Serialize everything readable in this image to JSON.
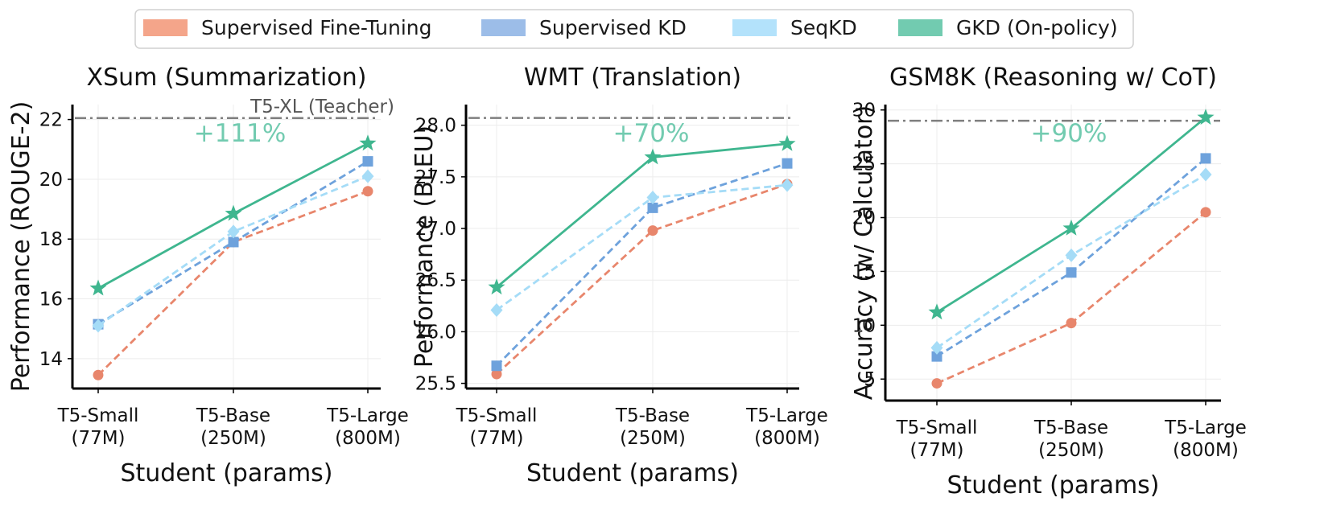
{
  "legend": {
    "position": "top-center",
    "entries": [
      {
        "label": "Supervised Fine-Tuning",
        "color": "#f4a58a"
      },
      {
        "label": "Supervised KD",
        "color": "#9cbde8"
      },
      {
        "label": "SeqKD",
        "color": "#b3e2fb"
      },
      {
        "label": "GKD (On-policy)",
        "color": "#72cbb0"
      }
    ]
  },
  "chart_data": [
    {
      "type": "line",
      "title": "XSum (Summarization)",
      "xlabel": "Student (params)",
      "ylabel": "Performance (ROUGE-2)",
      "categories": [
        [
          "T5-Small",
          "(77M)"
        ],
        [
          "T5-Base",
          "(250M)"
        ],
        [
          "T5-Large",
          "(800M)"
        ]
      ],
      "ylim": [
        13,
        22.5
      ],
      "yticks": [
        14,
        16,
        18,
        20,
        22
      ],
      "ytick_labels": [
        "14",
        "16",
        "18",
        "20",
        "22"
      ],
      "grid": true,
      "teacher": {
        "value": 22.05,
        "label": "T5-XL (Teacher)"
      },
      "annotation": "+111%",
      "series": [
        {
          "name": "Supervised Fine-Tuning",
          "color": "#e8866c",
          "dash": true,
          "marker": "circle",
          "values": [
            13.45,
            17.9,
            19.6
          ]
        },
        {
          "name": "Supervised KD",
          "color": "#6ea2dc",
          "dash": true,
          "marker": "square",
          "values": [
            15.15,
            17.9,
            20.6
          ]
        },
        {
          "name": "SeqKD",
          "color": "#a5dcf7",
          "dash": true,
          "marker": "diamond",
          "values": [
            15.1,
            18.25,
            20.1
          ]
        },
        {
          "name": "GKD (On-policy)",
          "color": "#3fb68f",
          "dash": false,
          "marker": "star",
          "values": [
            16.35,
            18.85,
            21.2
          ]
        }
      ]
    },
    {
      "type": "line",
      "title": "WMT (Translation)",
      "xlabel": "Student (params)",
      "ylabel": "Performance (BLEU)",
      "categories": [
        [
          "T5-Small",
          "(77M)"
        ],
        [
          "T5-Base",
          "(250M)"
        ],
        [
          "T5-Large",
          "(800M)"
        ]
      ],
      "ylim": [
        25.45,
        28.2
      ],
      "yticks": [
        25.5,
        26.0,
        26.5,
        27.0,
        27.5,
        28.0
      ],
      "ytick_labels": [
        "25.5",
        "26.0",
        "26.5",
        "27.0",
        "27.5",
        "28.0"
      ],
      "grid": true,
      "teacher": {
        "value": 28.07,
        "label": ""
      },
      "annotation": "+70%",
      "series": [
        {
          "name": "Supervised Fine-Tuning",
          "color": "#e8866c",
          "dash": true,
          "marker": "circle",
          "values": [
            25.59,
            26.98,
            27.43
          ]
        },
        {
          "name": "Supervised KD",
          "color": "#6ea2dc",
          "dash": true,
          "marker": "square",
          "values": [
            25.67,
            27.2,
            27.63
          ]
        },
        {
          "name": "SeqKD",
          "color": "#a5dcf7",
          "dash": true,
          "marker": "diamond",
          "values": [
            26.21,
            27.3,
            27.42
          ]
        },
        {
          "name": "GKD (On-policy)",
          "color": "#3fb68f",
          "dash": false,
          "marker": "star",
          "values": [
            26.43,
            27.69,
            27.82
          ]
        }
      ]
    },
    {
      "type": "line",
      "title": "GSM8K (Reasoning w/ CoT)",
      "xlabel": "Student (params)",
      "ylabel": "Accuracy (w/ Calculator)",
      "categories": [
        [
          "T5-Small",
          "(77M)"
        ],
        [
          "T5-Base",
          "(250M)"
        ],
        [
          "T5-Large",
          "(800M)"
        ]
      ],
      "ylim": [
        3,
        30.5
      ],
      "yticks": [
        5,
        10,
        15,
        20,
        25,
        30
      ],
      "ytick_labels": [
        "5",
        "10",
        "15",
        "20",
        "25",
        "30"
      ],
      "grid": true,
      "teacher": {
        "value": 29.0,
        "label": ""
      },
      "annotation": "+90%",
      "series": [
        {
          "name": "Supervised Fine-Tuning",
          "color": "#e8866c",
          "dash": true,
          "marker": "circle",
          "values": [
            4.6,
            10.2,
            20.5
          ]
        },
        {
          "name": "Supervised KD",
          "color": "#6ea2dc",
          "dash": true,
          "marker": "square",
          "values": [
            7.1,
            14.9,
            25.5
          ]
        },
        {
          "name": "SeqKD",
          "color": "#a5dcf7",
          "dash": true,
          "marker": "diamond",
          "values": [
            7.9,
            16.5,
            24.0
          ]
        },
        {
          "name": "GKD (On-policy)",
          "color": "#3fb68f",
          "dash": false,
          "marker": "star",
          "values": [
            11.2,
            19.0,
            29.3
          ]
        }
      ]
    }
  ]
}
